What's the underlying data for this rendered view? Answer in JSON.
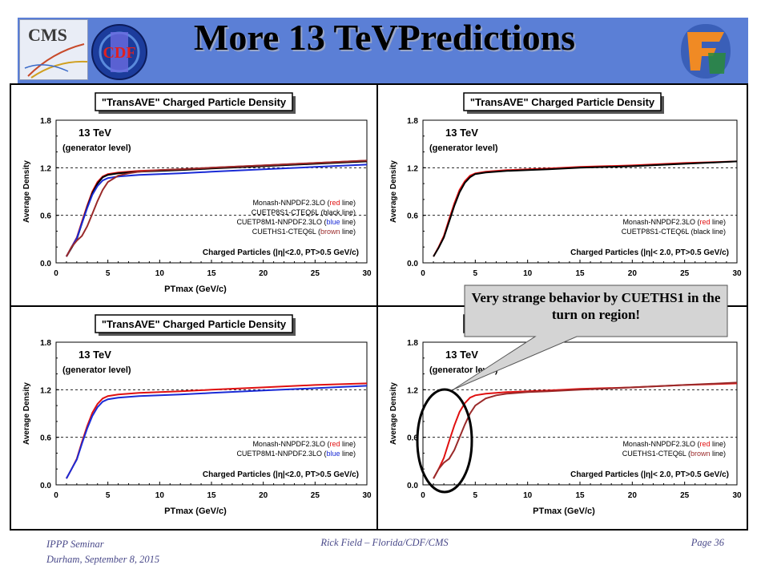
{
  "slide": {
    "title": "More 13 TeVPredictions",
    "callout": "Very strange behavior by CUETHS1 in the turn on region!",
    "footer_left_1": "IPPP Seminar",
    "footer_left_2": "Durham, September 8, 2015",
    "footer_center": "Rick Field – Florida/CDF/CMS",
    "footer_right": "Page 36",
    "cms_logo_text": "CMS",
    "cdf_logo_text": "CDF"
  },
  "colors": {
    "header": "#5b7fd6",
    "red": "#e01010",
    "black": "#000000",
    "blue": "#1a2bd6",
    "brown": "#9a2a2a",
    "callout_fill": "#d4d4d4",
    "footer": "#4a4a8a"
  },
  "chart_data": [
    {
      "type": "line",
      "title": "\"TransAVE\" Charged Particle Density",
      "xlabel": "PTmax (GeV/c)",
      "ylabel": "Average Density",
      "xlim": [
        0,
        30
      ],
      "ylim": [
        0,
        1.8
      ],
      "xticks": [
        "0",
        "5",
        "10",
        "15",
        "20",
        "25",
        "30"
      ],
      "yticks": [
        "0.0",
        "0.6",
        "1.2",
        "1.8"
      ],
      "grid": "dashed at y=0.6, 1.2",
      "annotation_1": "13 TeV",
      "annotation_2": "(generator level)",
      "selection": "Charged Particles (|η|<2.0, PT>0.5 GeV/c)",
      "series": [
        {
          "name": "Monash-NNPDF2.3LO",
          "legend_prefix": "Monash-NNPDF2.3LO (",
          "legend_color_word": "red",
          "legend_suffix": " line)",
          "color": "red",
          "x": [
            1,
            1.5,
            2,
            2.5,
            3,
            3.5,
            4,
            4.5,
            5,
            6,
            7,
            8,
            10,
            12,
            15,
            20,
            25,
            30
          ],
          "y": [
            0.08,
            0.2,
            0.32,
            0.52,
            0.72,
            0.9,
            1.02,
            1.09,
            1.12,
            1.14,
            1.15,
            1.16,
            1.17,
            1.18,
            1.2,
            1.23,
            1.26,
            1.29
          ]
        },
        {
          "name": "CUETP8S1-CTEQ6L",
          "legend_prefix": "CUETP8S1-CTEQ6L (",
          "legend_color_word": "black",
          "legend_suffix": " line)",
          "color": "black",
          "x": [
            1,
            1.5,
            2,
            2.5,
            3,
            3.5,
            4,
            4.5,
            5,
            6,
            7,
            8,
            10,
            12,
            15,
            20,
            25,
            30
          ],
          "y": [
            0.08,
            0.19,
            0.3,
            0.5,
            0.7,
            0.88,
            1.0,
            1.08,
            1.11,
            1.13,
            1.14,
            1.15,
            1.16,
            1.17,
            1.19,
            1.22,
            1.25,
            1.28
          ]
        },
        {
          "name": "CUETP8M1-NNPDF2.3LO",
          "legend_prefix": "CUETP8M1-NNPDF2.3LO (",
          "legend_color_word": "blue",
          "legend_suffix": " line)",
          "color": "blue",
          "x": [
            1,
            1.5,
            2,
            2.5,
            3,
            3.5,
            4,
            4.5,
            5,
            6,
            7,
            8,
            10,
            12,
            15,
            20,
            25,
            30
          ],
          "y": [
            0.08,
            0.2,
            0.31,
            0.5,
            0.69,
            0.86,
            0.97,
            1.04,
            1.07,
            1.09,
            1.1,
            1.11,
            1.12,
            1.13,
            1.15,
            1.18,
            1.21,
            1.24
          ]
        },
        {
          "name": "CUETHS1-CTEQ6L",
          "legend_prefix": "CUETHS1-CTEQ6L (",
          "legend_color_word": "brown",
          "legend_suffix": " line)",
          "color": "brown",
          "x": [
            1,
            1.5,
            2,
            2.5,
            3,
            3.5,
            4,
            4.5,
            5,
            6,
            7,
            8,
            10,
            12,
            15,
            20,
            25,
            30
          ],
          "y": [
            0.08,
            0.2,
            0.28,
            0.34,
            0.46,
            0.62,
            0.78,
            0.92,
            1.02,
            1.1,
            1.13,
            1.15,
            1.17,
            1.18,
            1.2,
            1.23,
            1.26,
            1.29
          ]
        }
      ]
    },
    {
      "type": "line",
      "title": "\"TransAVE\" Charged Particle Density",
      "xlabel": "PTmax (GeV/c)",
      "ylabel": "Average Density",
      "xlim": [
        0,
        30
      ],
      "ylim": [
        0,
        1.8
      ],
      "xticks": [
        "0",
        "5",
        "10",
        "15",
        "20",
        "25",
        "30"
      ],
      "yticks": [
        "0.0",
        "0.6",
        "1.2",
        "1.8"
      ],
      "grid": "dashed at y=0.6, 1.2",
      "annotation_1": "13 TeV",
      "annotation_2": "(generator level)",
      "selection": "Charged Particles (|η|< 2.0, PT>0.5 GeV/c)",
      "series": [
        {
          "name": "Monash-NNPDF2.3LO",
          "legend_prefix": "Monash-NNPDF2.3LO (",
          "legend_color_word": "red",
          "legend_suffix": " line)",
          "color": "red",
          "x": [
            1,
            1.5,
            2,
            2.5,
            3,
            3.5,
            4,
            4.5,
            5,
            6,
            7,
            8,
            10,
            12,
            15,
            20,
            25,
            30
          ],
          "y": [
            0.08,
            0.2,
            0.34,
            0.55,
            0.75,
            0.92,
            1.03,
            1.1,
            1.13,
            1.15,
            1.16,
            1.17,
            1.18,
            1.19,
            1.21,
            1.23,
            1.26,
            1.28
          ]
        },
        {
          "name": "CUETP8S1-CTEQ6L",
          "legend_prefix": "CUETP8S1-CTEQ6L (",
          "legend_color_word": "black",
          "legend_suffix": " line)",
          "color": "black",
          "x": [
            1,
            1.5,
            2,
            2.5,
            3,
            3.5,
            4,
            4.5,
            5,
            6,
            7,
            8,
            10,
            12,
            15,
            20,
            25,
            30
          ],
          "y": [
            0.08,
            0.19,
            0.32,
            0.52,
            0.72,
            0.89,
            1.01,
            1.08,
            1.12,
            1.14,
            1.15,
            1.16,
            1.17,
            1.18,
            1.2,
            1.22,
            1.25,
            1.28
          ]
        }
      ]
    },
    {
      "type": "line",
      "title": "\"TransAVE\" Charged Particle Density",
      "xlabel": "PTmax (GeV/c)",
      "ylabel": "Average Density",
      "xlim": [
        0,
        30
      ],
      "ylim": [
        0,
        1.8
      ],
      "xticks": [
        "0",
        "5",
        "10",
        "15",
        "20",
        "25",
        "30"
      ],
      "yticks": [
        "0.0",
        "0.6",
        "1.2",
        "1.8"
      ],
      "grid": "dashed at y=0.6, 1.2",
      "annotation_1": "13 TeV",
      "annotation_2": "(generator level)",
      "selection": "Charged Particles (|η|<2.0, PT>0.5 GeV/c)",
      "series": [
        {
          "name": "Monash-NNPDF2.3LO",
          "legend_prefix": "Monash-NNPDF2.3LO (",
          "legend_color_word": "red",
          "legend_suffix": " line)",
          "color": "red",
          "x": [
            1,
            1.5,
            2,
            2.5,
            3,
            3.5,
            4,
            4.5,
            5,
            6,
            7,
            8,
            10,
            12,
            15,
            20,
            25,
            30
          ],
          "y": [
            0.08,
            0.2,
            0.33,
            0.54,
            0.74,
            0.91,
            1.02,
            1.09,
            1.12,
            1.14,
            1.15,
            1.16,
            1.17,
            1.18,
            1.2,
            1.23,
            1.26,
            1.28
          ]
        },
        {
          "name": "CUETP8M1-NNPDF2.3LO",
          "legend_prefix": "CUETP8M1-NNPDF2.3LO (",
          "legend_color_word": "blue",
          "legend_suffix": " line)",
          "color": "blue",
          "x": [
            1,
            1.5,
            2,
            2.5,
            3,
            3.5,
            4,
            4.5,
            5,
            6,
            7,
            8,
            10,
            12,
            15,
            20,
            25,
            30
          ],
          "y": [
            0.08,
            0.2,
            0.32,
            0.52,
            0.71,
            0.87,
            0.98,
            1.05,
            1.08,
            1.1,
            1.11,
            1.12,
            1.13,
            1.14,
            1.16,
            1.19,
            1.22,
            1.25
          ]
        }
      ]
    },
    {
      "type": "line",
      "title": "\"TransAVE\" Charged Particle Density",
      "xlabel": "PTmax (GeV/c)",
      "ylabel": "Average Density",
      "xlim": [
        0,
        30
      ],
      "ylim": [
        0,
        1.8
      ],
      "xticks": [
        "0",
        "5",
        "10",
        "15",
        "20",
        "25",
        "30"
      ],
      "yticks": [
        "0.0",
        "0.6",
        "1.2",
        "1.8"
      ],
      "grid": "dashed at y=0.6, 1.2",
      "annotation_1": "13 TeV",
      "annotation_2": "(generator level)",
      "selection": "Charged Particles (|η|< 2.0, PT>0.5 GeV/c)",
      "series": [
        {
          "name": "Monash-NNPDF2.3LO",
          "legend_prefix": "Monash-NNPDF2.3LO (",
          "legend_color_word": "red",
          "legend_suffix": " line)",
          "color": "red",
          "x": [
            1,
            1.5,
            2,
            2.5,
            3,
            3.5,
            4,
            4.5,
            5,
            6,
            7,
            8,
            10,
            12,
            15,
            20,
            25,
            30
          ],
          "y": [
            0.08,
            0.2,
            0.34,
            0.55,
            0.75,
            0.92,
            1.03,
            1.1,
            1.13,
            1.15,
            1.16,
            1.17,
            1.18,
            1.19,
            1.21,
            1.23,
            1.26,
            1.28
          ]
        },
        {
          "name": "CUETHS1-CTEQ6L",
          "legend_prefix": "CUETHS1-CTEQ6L (",
          "legend_color_word": "brown",
          "legend_suffix": " line)",
          "color": "brown",
          "x": [
            1,
            1.5,
            2,
            2.5,
            3,
            3.5,
            4,
            4.5,
            5,
            6,
            7,
            8,
            10,
            12,
            15,
            20,
            25,
            30
          ],
          "y": [
            0.08,
            0.2,
            0.28,
            0.33,
            0.44,
            0.6,
            0.76,
            0.9,
            1.0,
            1.09,
            1.13,
            1.15,
            1.17,
            1.18,
            1.2,
            1.23,
            1.26,
            1.29
          ]
        }
      ]
    }
  ]
}
